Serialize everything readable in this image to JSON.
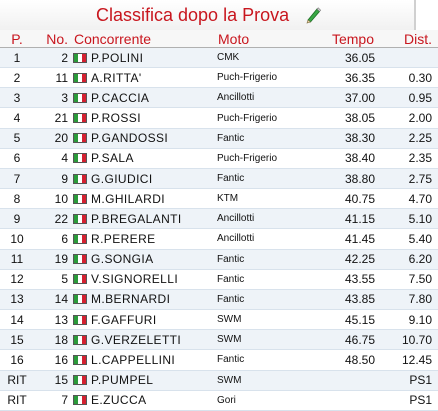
{
  "title": "Classifica dopo la Prova",
  "icons": {
    "edit": "pencil-icon",
    "flag": "italy-flag-icon"
  },
  "colors": {
    "title": "#c8161e",
    "header": "#c8161e",
    "row_alt": "#eef3f8"
  },
  "columns": {
    "pos": "P.",
    "no": "No.",
    "rider": "Concorrente",
    "moto": "Moto",
    "tempo": "Tempo",
    "dist": "Dist."
  },
  "rows": [
    {
      "pos": "1",
      "no": "2",
      "rider": "P.POLINI",
      "moto": "CMK",
      "tempo": "36.05",
      "dist": ""
    },
    {
      "pos": "2",
      "no": "11",
      "rider": "A.RITTA'",
      "moto": "Puch-Frigerio",
      "tempo": "36.35",
      "dist": "0.30"
    },
    {
      "pos": "3",
      "no": "3",
      "rider": "P.CACCIA",
      "moto": "Ancillotti",
      "tempo": "37.00",
      "dist": "0.95"
    },
    {
      "pos": "4",
      "no": "21",
      "rider": "P.ROSSI",
      "moto": "Puch-Frigerio",
      "tempo": "38.05",
      "dist": "2.00"
    },
    {
      "pos": "5",
      "no": "20",
      "rider": "P.GANDOSSI",
      "moto": "Fantic",
      "tempo": "38.30",
      "dist": "2.25"
    },
    {
      "pos": "6",
      "no": "4",
      "rider": "P.SALA",
      "moto": "Puch-Frigerio",
      "tempo": "38.40",
      "dist": "2.35"
    },
    {
      "pos": "7",
      "no": "9",
      "rider": "G.GIUDICI",
      "moto": "Fantic",
      "tempo": "38.80",
      "dist": "2.75"
    },
    {
      "pos": "8",
      "no": "10",
      "rider": "M.GHILARDI",
      "moto": "KTM",
      "tempo": "40.75",
      "dist": "4.70"
    },
    {
      "pos": "9",
      "no": "22",
      "rider": "P.BREGALANTI",
      "moto": "Ancillotti",
      "tempo": "41.15",
      "dist": "5.10"
    },
    {
      "pos": "10",
      "no": "6",
      "rider": "R.PERERE",
      "moto": "Ancillotti",
      "tempo": "41.45",
      "dist": "5.40"
    },
    {
      "pos": "11",
      "no": "19",
      "rider": "G.SONGIA",
      "moto": "Fantic",
      "tempo": "42.25",
      "dist": "6.20"
    },
    {
      "pos": "12",
      "no": "5",
      "rider": "V.SIGNORELLI",
      "moto": "Fantic",
      "tempo": "43.55",
      "dist": "7.50"
    },
    {
      "pos": "13",
      "no": "14",
      "rider": "M.BERNARDI",
      "moto": "Fantic",
      "tempo": "43.85",
      "dist": "7.80"
    },
    {
      "pos": "14",
      "no": "13",
      "rider": "F.GAFFURI",
      "moto": "SWM",
      "tempo": "45.15",
      "dist": "9.10"
    },
    {
      "pos": "15",
      "no": "18",
      "rider": "G.VERZELETTI",
      "moto": "SWM",
      "tempo": "46.75",
      "dist": "10.70"
    },
    {
      "pos": "16",
      "no": "16",
      "rider": "L.CAPPELLINI",
      "moto": "Fantic",
      "tempo": "48.50",
      "dist": "12.45"
    },
    {
      "pos": "RIT",
      "no": "15",
      "rider": "P.PUMPEL",
      "moto": "SWM",
      "tempo": "",
      "dist": "PS1"
    },
    {
      "pos": "RIT",
      "no": "7",
      "rider": "E.ZUCCA",
      "moto": "Gori",
      "tempo": "",
      "dist": "PS1"
    }
  ]
}
